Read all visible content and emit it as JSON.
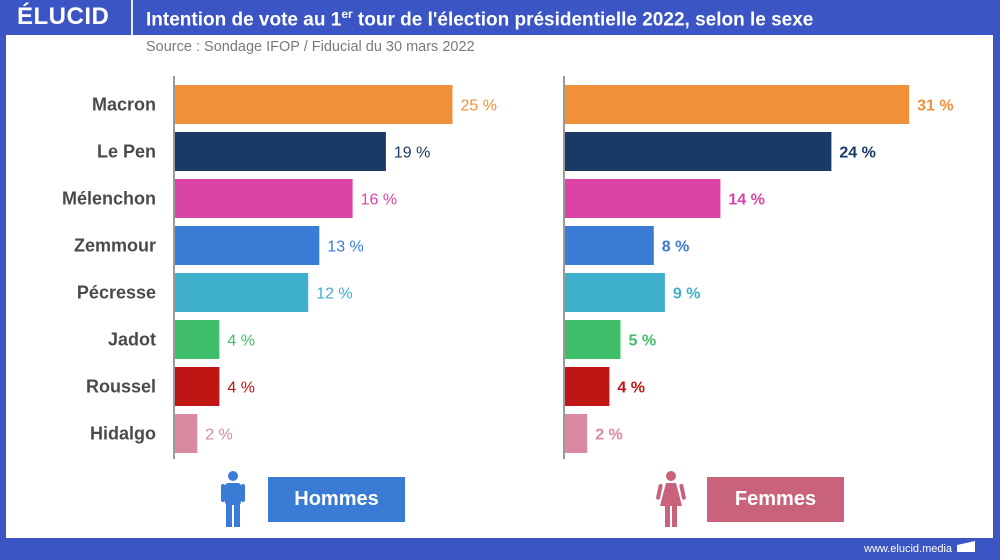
{
  "header": {
    "logo": "ÉLUCID",
    "title_pre": "Intention de vote au 1",
    "title_sup": "er",
    "title_post": " tour de l'élection présidentielle 2022, selon le sexe",
    "source": "Source : Sondage IFOP / Fiducial du 30 mars 2022"
  },
  "footer": {
    "url": "www.elucid.media"
  },
  "legend": {
    "men": {
      "label": "Hommes",
      "icon": "man-icon",
      "color": "#3a7bd5",
      "icon_color": "#3a7bd5"
    },
    "women": {
      "label": "Femmes",
      "icon": "woman-icon",
      "color": "#c9627b",
      "icon_color": "#c9627b"
    }
  },
  "chart_data": {
    "type": "bar",
    "orientation": "horizontal",
    "title": "Intention de vote au 1er tour de l'élection présidentielle 2022, selon le sexe",
    "subtitle": "Source : Sondage IFOP / Fiducial du 30 mars 2022",
    "categories": [
      "Macron",
      "Le Pen",
      "Mélenchon",
      "Zemmour",
      "Pécresse",
      "Jadot",
      "Roussel",
      "Hidalgo"
    ],
    "colors": [
      "#f0913a",
      "#1a3a66",
      "#d944a5",
      "#3a7bd5",
      "#3fb0cc",
      "#3fbf6a",
      "#c01515",
      "#d98aa0"
    ],
    "unit": "%",
    "series": [
      {
        "name": "Hommes",
        "values": [
          25,
          19,
          16,
          13,
          12,
          4,
          4,
          2
        ],
        "labels": [
          "25 %",
          "19 %",
          "16 %",
          "13 %",
          "12 %",
          "4 %",
          "4 %",
          "2 %"
        ]
      },
      {
        "name": "Femmes",
        "values": [
          31,
          24,
          14,
          8,
          9,
          5,
          4,
          2
        ],
        "labels": [
          "31 %",
          "24 %",
          "14 %",
          "8 %",
          "9 %",
          "5 %",
          "4 %",
          "2 %"
        ]
      }
    ],
    "xlim": [
      0,
      35
    ],
    "grid": false,
    "legend": "bottom"
  }
}
